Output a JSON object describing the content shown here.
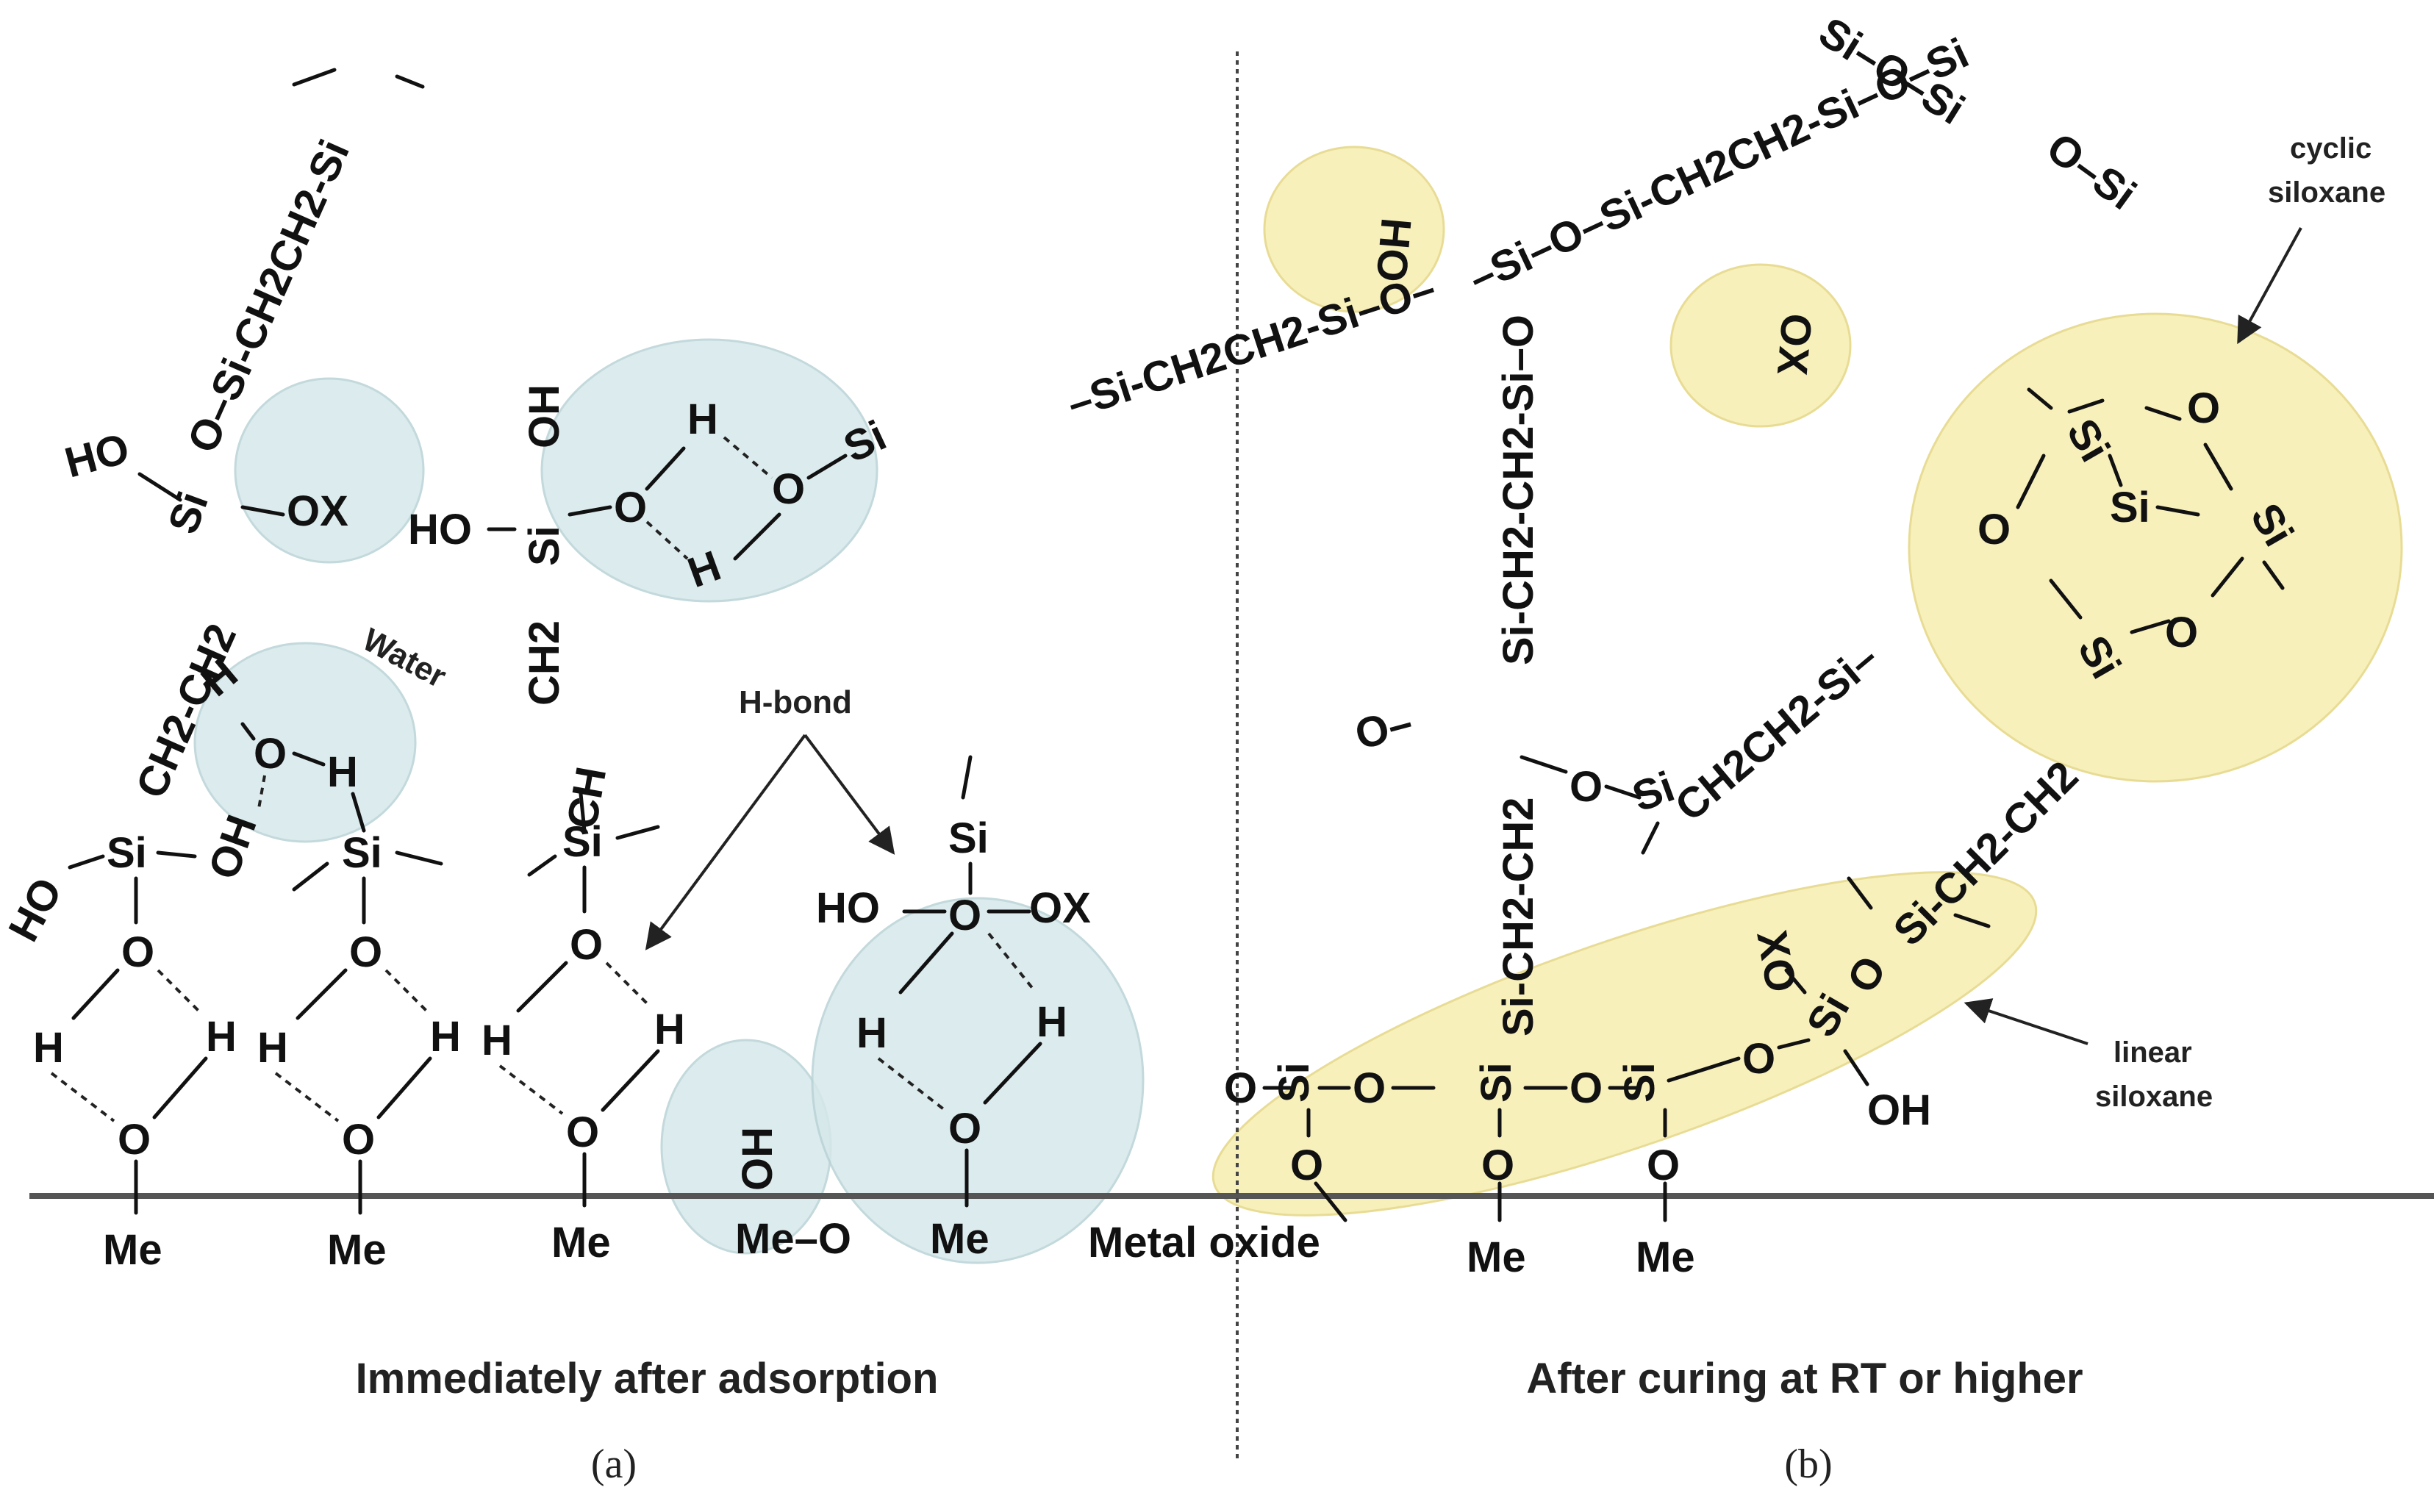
{
  "panel_a": {
    "caption": "Immediately after adsorption",
    "label": "(a)",
    "water_note": "Water",
    "hbond_note": "H-bond",
    "chem": {
      "top_chain": "Si-CH2CH2-Si",
      "si_o_link": "O",
      "ho_1": "HO",
      "si_1": "Si",
      "ox_1": "OX",
      "ch2ch2_1": "CH2-CH2",
      "ho_2": "HO",
      "si_2": "Si",
      "oh_2": "OH",
      "o_2": "O",
      "h_2a": "H",
      "o_2b": "O",
      "si_2b": "Si",
      "h_2b": "H",
      "ch2_2": "CH2",
      "ch_2": "CH",
      "wat_h1": "H",
      "wat_o": "O",
      "wat_h2": "H",
      "wat_oh": "OH",
      "si_3": "Si",
      "si_4": "Si",
      "si_5": "Si",
      "ho_3": "HO",
      "si_6": "Si",
      "ho_6": "HO",
      "o_6": "O",
      "ox_6": "OX",
      "o_col1": "O",
      "h_col1a": "H",
      "h_col1b": "H",
      "o_col1b": "O",
      "o_col2": "O",
      "h_col2a": "H",
      "h_col2b": "H",
      "o_col2b": "O",
      "o_col3": "O",
      "h_col3a": "H",
      "h_col3b": "H",
      "o_col3b": "O",
      "h_col4a": "H",
      "h_col4b": "H",
      "o_col4b": "O",
      "oh_vert": "OH",
      "me_o": "Me–O",
      "me_1": "Me",
      "me_2": "Me",
      "me_3": "Me",
      "me_4": "Me"
    }
  },
  "panel_b": {
    "caption": "After curing at RT or higher",
    "label": "(b)",
    "surface_note": "Metal oxide",
    "cyclic_note_1": "cyclic",
    "cyclic_note_2": "siloxane",
    "linear_note_1": "linear",
    "linear_note_2": "siloxane",
    "chem": {
      "top_right": "Si–O–Si",
      "o_si_top": "O–Si",
      "chain_top": "–Si–O–Si-CH2CH2-Si–O–Si",
      "ho_top": "HO",
      "si_ring1": "Si",
      "o_ring1": "O",
      "si_ring2": "Si",
      "o_ring2": "O",
      "si_ring3": "Si",
      "o_ring3": "O",
      "si_ring4": "Si",
      "ox_top": "OX",
      "left_chain": "–Si-CH2CH2-Si–O–",
      "vert_chain_1": "Si-CH2-CH2-Si–O",
      "o_left": "O–",
      "si_mid": "Si",
      "ch2ch2_mid": "CH2CH2-Si–",
      "o_mid": "O",
      "vert_chain_2": "Si-CH2-CH2",
      "diag_chain": "Si-CH2-CH2",
      "xo": "XO",
      "o_si_low": "O",
      "si_low": "Si",
      "o_si_link": "O",
      "oh_low": "OH",
      "o_lead": "O",
      "si_l1": "Si",
      "o_l1": "O",
      "si_l2": "Si",
      "o_l2": "O",
      "si_l3": "Si",
      "o_b1": "O",
      "o_b2": "O",
      "o_b3": "O",
      "me_b1": "Me",
      "me_b2": "Me"
    }
  },
  "colors": {
    "blue_highlight": "#d6e8ea",
    "yellow_highlight": "#f7efb4",
    "surface_line": "#555555"
  }
}
